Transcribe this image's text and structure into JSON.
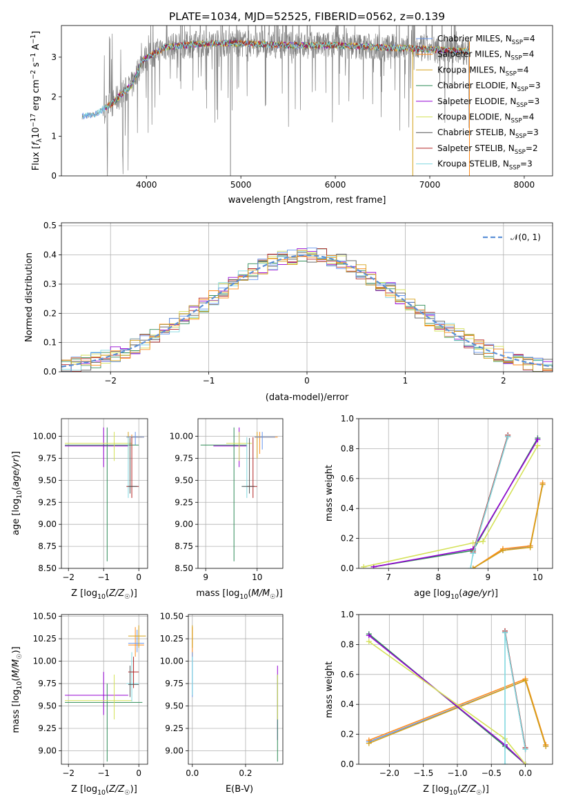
{
  "title": "PLATE=1034, MJD=52525, FIBERID=0562, z=0.139",
  "colors": {
    "data": "#808080",
    "Chabrier MILES": "#6495ed",
    "Salpeter MILES": "#ff8c1a",
    "Kroupa MILES": "#d4a017",
    "Chabrier ELODIE": "#2e8b57",
    "Salpeter ELODIE": "#9400d3",
    "Kroupa ELODIE": "#d4e157",
    "Chabrier STELIB": "#555555",
    "Salpeter STELIB": "#b22222",
    "Kroupa STELIB": "#80d8e0",
    "gaussian": "#5b8fd6",
    "grid": "#b0b0b0"
  },
  "chart_data": [
    {
      "id": "spectrum",
      "type": "line",
      "xlabel": "wavelength [Angstrom, rest frame]",
      "ylabel": "Flux [f_λ10^-17 erg cm^-2 s^-1 A^-1]",
      "xlim": [
        3100,
        8300
      ],
      "ylim": [
        0,
        3.8
      ],
      "xticks": [
        4000,
        5000,
        6000,
        7000,
        8000
      ],
      "yticks": [
        0,
        1,
        2,
        3
      ],
      "legend_position": "upper right",
      "legend": [
        {
          "base": "Chabrier MILES, N",
          "sub": "SSP",
          "tail": "=4"
        },
        {
          "base": "Salpeter MILES, N",
          "sub": "SSP",
          "tail": "=4"
        },
        {
          "base": "Kroupa MILES, N",
          "sub": "SSP",
          "tail": "=4"
        },
        {
          "base": "Chabrier ELODIE, N",
          "sub": "SSP",
          "tail": "=3"
        },
        {
          "base": "Salpeter ELODIE, N",
          "sub": "SSP",
          "tail": "=3"
        },
        {
          "base": "Kroupa ELODIE, N",
          "sub": "SSP",
          "tail": "=4"
        },
        {
          "base": "Chabrier STELIB, N",
          "sub": "SSP",
          "tail": "=3"
        },
        {
          "base": "Salpeter STELIB, N",
          "sub": "SSP",
          "tail": "=2"
        },
        {
          "base": "Kroupa STELIB, N",
          "sub": "SSP",
          "tail": "=3"
        }
      ],
      "model_trend": [
        [
          3320,
          1.5
        ],
        [
          3450,
          1.55
        ],
        [
          3550,
          1.7
        ],
        [
          3650,
          1.85
        ],
        [
          3750,
          2.1
        ],
        [
          3850,
          2.3
        ],
        [
          3950,
          2.9
        ],
        [
          4050,
          3.05
        ],
        [
          4200,
          3.25
        ],
        [
          4400,
          3.3
        ],
        [
          4600,
          3.35
        ],
        [
          5000,
          3.35
        ],
        [
          5500,
          3.3
        ],
        [
          6000,
          3.3
        ],
        [
          6500,
          3.25
        ],
        [
          7000,
          3.2
        ],
        [
          7400,
          3.15
        ]
      ]
    },
    {
      "id": "residuals",
      "type": "line",
      "xlabel": "(data-model)/error",
      "ylabel": "Normed distribution",
      "xlim": [
        -2.5,
        2.5
      ],
      "ylim": [
        0,
        0.51
      ],
      "xticks": [
        -2,
        -1,
        0,
        1,
        2
      ],
      "yticks": [
        0.0,
        0.1,
        0.2,
        0.3,
        0.4,
        0.5
      ],
      "grid": true,
      "legend_position": "upper right",
      "legend_label": "𝒩(0, 1)"
    },
    {
      "id": "age-vs-Z",
      "type": "scatter",
      "xlabel": "Z [log10(Z/Z☉)]",
      "ylabel": "age [log10(age/yr)]",
      "xlim": [
        -2.2,
        0.25
      ],
      "ylim": [
        8.5,
        10.2
      ],
      "xticks": [
        -2,
        -1,
        0
      ],
      "yticks": [
        8.5,
        8.75,
        9.0,
        9.25,
        9.5,
        9.75,
        10.0
      ],
      "grid": true
    },
    {
      "id": "age-vs-mass",
      "type": "scatter",
      "xlabel": "mass [log10(M/M☉)]",
      "ylabel": "",
      "xlim": [
        8.85,
        10.5
      ],
      "ylim": [
        8.5,
        10.2
      ],
      "xticks": [
        9,
        10
      ],
      "yticks": [
        8.5,
        8.75,
        9.0,
        9.25,
        9.5,
        9.75,
        10.0
      ],
      "grid": true
    },
    {
      "id": "weight-vs-age",
      "type": "line",
      "xlabel": "age [log10(age/yr)]",
      "ylabel": "mass weight",
      "xlim": [
        6.4,
        10.3
      ],
      "ylim": [
        0,
        1
      ],
      "xticks": [
        7,
        8,
        9,
        10
      ],
      "yticks": [
        0.0,
        0.2,
        0.4,
        0.6,
        0.8,
        1.0
      ],
      "grid": true,
      "series": [
        {
          "key": "Chabrier MILES",
          "x": [
            8.7,
            9.3,
            9.85,
            10.1
          ],
          "y": [
            0.0,
            0.12,
            0.15,
            0.56
          ]
        },
        {
          "key": "Salpeter MILES",
          "x": [
            8.7,
            9.3,
            9.85,
            10.1
          ],
          "y": [
            0.0,
            0.13,
            0.15,
            0.57
          ]
        },
        {
          "key": "Kroupa MILES",
          "x": [
            8.7,
            9.3,
            9.85,
            10.1
          ],
          "y": [
            0.0,
            0.12,
            0.14,
            0.56
          ]
        },
        {
          "key": "Chabrier ELODIE",
          "x": [
            6.7,
            8.7,
            10.0
          ],
          "y": [
            0.01,
            0.12,
            0.87
          ]
        },
        {
          "key": "Salpeter ELODIE",
          "x": [
            6.7,
            8.7,
            10.0
          ],
          "y": [
            0.01,
            0.13,
            0.86
          ]
        },
        {
          "key": "Kroupa ELODIE",
          "x": [
            6.5,
            8.7,
            8.9,
            10.0
          ],
          "y": [
            0.01,
            0.17,
            0.18,
            0.82
          ]
        },
        {
          "key": "Chabrier STELIB",
          "x": [
            8.7,
            9.4
          ],
          "y": [
            0.1,
            0.88
          ]
        },
        {
          "key": "Salpeter STELIB",
          "x": [
            8.7,
            9.4
          ],
          "y": [
            0.11,
            0.89
          ]
        },
        {
          "key": "Kroupa STELIB",
          "x": [
            8.65,
            8.7,
            9.4
          ],
          "y": [
            0.0,
            0.1,
            0.88
          ]
        }
      ]
    },
    {
      "id": "mass-vs-Z",
      "type": "scatter",
      "xlabel": "Z [log10(Z/Z☉)]",
      "ylabel": "mass [log10(M/M☉)]",
      "xlim": [
        -2.2,
        0.25
      ],
      "ylim": [
        8.85,
        10.52
      ],
      "xticks": [
        -2,
        -1,
        0
      ],
      "yticks": [
        9.0,
        9.25,
        9.5,
        9.75,
        10.0,
        10.25,
        10.5
      ],
      "grid": true
    },
    {
      "id": "mass-vs-EBV",
      "type": "scatter",
      "xlabel": "E(B-V)",
      "ylabel": "",
      "xlim": [
        -0.015,
        0.34
      ],
      "ylim": [
        8.85,
        10.52
      ],
      "xticks": [
        0.0,
        0.2
      ],
      "yticks": [
        9.0,
        9.25,
        9.5,
        9.75,
        10.0,
        10.25,
        10.5
      ],
      "grid": true
    },
    {
      "id": "weight-vs-Z",
      "type": "line",
      "xlabel": "Z [log10(Z/Z☉)]",
      "ylabel": "mass weight",
      "xlim": [
        -2.45,
        0.4
      ],
      "ylim": [
        0,
        1
      ],
      "xticks": [
        -2.0,
        -1.5,
        -1.0,
        -0.5,
        0.0
      ],
      "yticks": [
        0.0,
        0.2,
        0.4,
        0.6,
        0.8,
        1.0
      ],
      "grid": true,
      "series": [
        {
          "key": "Chabrier MILES",
          "x": [
            -2.3,
            0.0,
            0.3
          ],
          "y": [
            0.15,
            0.56,
            0.12
          ]
        },
        {
          "key": "Salpeter MILES",
          "x": [
            -2.3,
            0.0,
            0.3
          ],
          "y": [
            0.16,
            0.57,
            0.13
          ]
        },
        {
          "key": "Kroupa MILES",
          "x": [
            -2.3,
            0.0,
            0.3
          ],
          "y": [
            0.14,
            0.56,
            0.12
          ]
        },
        {
          "key": "Chabrier ELODIE",
          "x": [
            -2.3,
            -0.3,
            0.0
          ],
          "y": [
            0.87,
            0.12,
            0.0
          ]
        },
        {
          "key": "Salpeter ELODIE",
          "x": [
            -2.3,
            -0.3,
            0.0
          ],
          "y": [
            0.86,
            0.13,
            0.0
          ]
        },
        {
          "key": "Kroupa ELODIE",
          "x": [
            -2.3,
            -0.3,
            0.0
          ],
          "y": [
            0.82,
            0.17,
            0.0
          ]
        },
        {
          "key": "Chabrier STELIB",
          "x": [
            -0.3,
            0.0
          ],
          "y": [
            0.88,
            0.1
          ]
        },
        {
          "key": "Salpeter STELIB",
          "x": [
            -0.3,
            0.0
          ],
          "y": [
            0.89,
            0.11
          ]
        },
        {
          "key": "Kroupa STELIB",
          "x": [
            -0.3,
            -0.3,
            0.0
          ],
          "y": [
            0.0,
            0.88,
            0.1
          ]
        }
      ]
    }
  ]
}
